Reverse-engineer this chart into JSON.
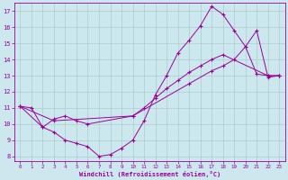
{
  "xlabel": "Windchill (Refroidissement éolien,°C)",
  "bg_color": "#cce8ee",
  "line_color": "#990099",
  "grid_color": "#aacccc",
  "xlim": [
    -0.5,
    23.5
  ],
  "ylim": [
    7.7,
    17.5
  ],
  "xticks": [
    0,
    1,
    2,
    3,
    4,
    5,
    6,
    7,
    8,
    9,
    10,
    11,
    12,
    13,
    14,
    15,
    16,
    17,
    18,
    19,
    20,
    21,
    22,
    23
  ],
  "yticks": [
    8,
    9,
    10,
    11,
    12,
    13,
    14,
    15,
    16,
    17
  ],
  "line1_x": [
    0,
    1,
    2,
    3,
    4,
    5,
    6,
    7,
    8,
    9,
    10,
    11,
    12,
    13,
    14,
    15,
    16,
    17,
    18,
    19,
    20,
    21,
    22,
    23
  ],
  "line1_y": [
    11.1,
    11.0,
    9.8,
    9.5,
    9.0,
    8.8,
    8.6,
    8.0,
    8.1,
    8.5,
    9.0,
    10.2,
    11.8,
    13.0,
    14.4,
    15.2,
    16.1,
    17.3,
    16.8,
    15.8,
    14.8,
    13.1,
    13.0,
    13.0
  ],
  "line2_x": [
    0,
    3,
    10,
    15,
    17,
    18,
    19,
    20,
    21,
    22,
    23
  ],
  "line2_y": [
    11.1,
    10.2,
    10.5,
    12.5,
    13.3,
    13.6,
    14.0,
    14.8,
    15.8,
    12.9,
    13.0
  ],
  "line3_x": [
    0,
    2,
    3,
    4,
    5,
    6,
    10,
    11,
    12,
    13,
    14,
    15,
    16,
    17,
    18,
    22,
    23
  ],
  "line3_y": [
    11.1,
    9.8,
    10.3,
    10.5,
    10.2,
    10.0,
    10.5,
    11.0,
    11.6,
    12.2,
    12.7,
    13.2,
    13.6,
    14.0,
    14.3,
    13.0,
    13.0
  ]
}
